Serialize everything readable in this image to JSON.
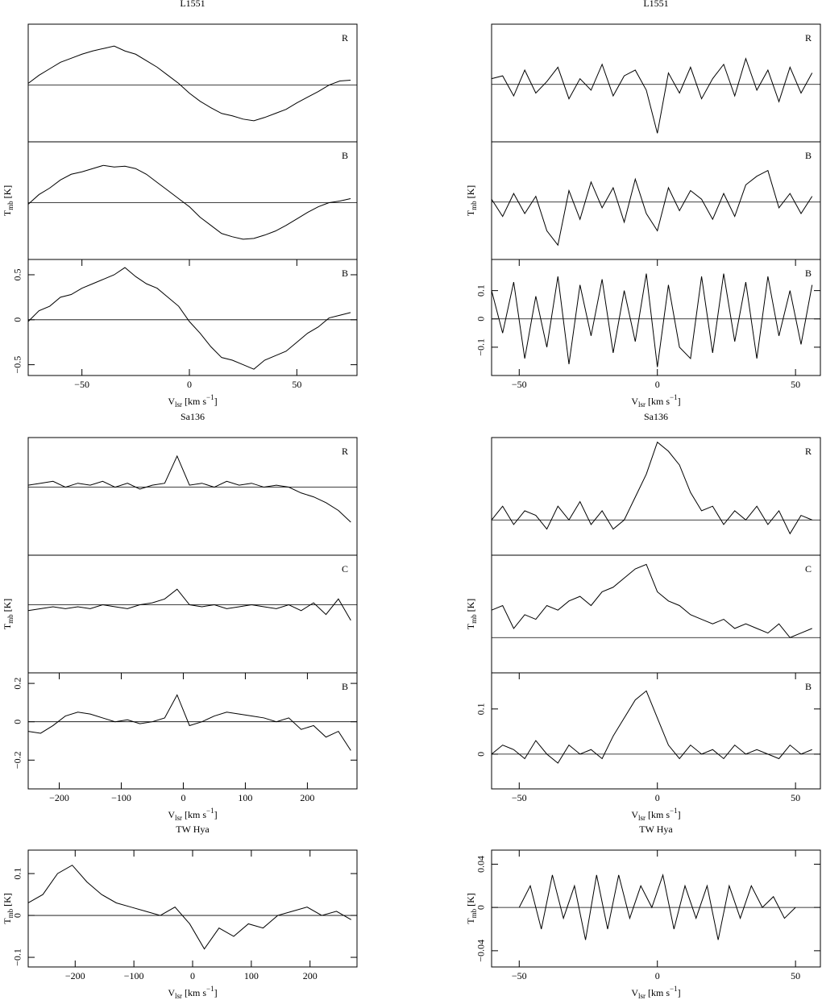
{
  "chart_data": [
    {
      "type": "line",
      "title": "L1551",
      "label": "R",
      "xlim": [
        -75,
        78
      ],
      "ylim": [
        -0.7,
        0.75
      ],
      "x": [
        -75,
        -70,
        -65,
        -60,
        -55,
        -50,
        -45,
        -40,
        -35,
        -30,
        -25,
        -20,
        -15,
        -10,
        -5,
        0,
        5,
        10,
        15,
        20,
        25,
        30,
        35,
        40,
        45,
        50,
        55,
        60,
        65,
        70,
        75
      ],
      "values": [
        0.02,
        0.12,
        0.2,
        0.28,
        0.33,
        0.38,
        0.42,
        0.45,
        0.48,
        0.42,
        0.38,
        0.3,
        0.22,
        0.12,
        0.02,
        -0.1,
        -0.2,
        -0.28,
        -0.35,
        -0.38,
        -0.42,
        -0.44,
        -0.4,
        -0.35,
        -0.3,
        -0.22,
        -0.15,
        -0.08,
        0.0,
        0.05,
        0.06
      ]
    },
    {
      "type": "line",
      "label": "B",
      "ylabel": [
        "T",
        "mb",
        " [K]"
      ],
      "xlim": [
        -75,
        78
      ],
      "ylim": [
        -0.7,
        0.75
      ],
      "x": [
        -75,
        -70,
        -65,
        -60,
        -55,
        -50,
        -45,
        -40,
        -35,
        -30,
        -25,
        -20,
        -15,
        -10,
        -5,
        0,
        5,
        10,
        15,
        20,
        25,
        30,
        35,
        40,
        45,
        50,
        55,
        60,
        65,
        70,
        75
      ],
      "values": [
        -0.02,
        0.1,
        0.18,
        0.28,
        0.35,
        0.38,
        0.42,
        0.46,
        0.44,
        0.45,
        0.42,
        0.35,
        0.25,
        0.15,
        0.05,
        -0.05,
        -0.18,
        -0.28,
        -0.38,
        -0.42,
        -0.45,
        -0.44,
        -0.4,
        -0.35,
        -0.28,
        -0.2,
        -0.12,
        -0.05,
        0.0,
        0.02,
        0.05
      ]
    },
    {
      "type": "line",
      "label": "B",
      "xlabel": [
        "V",
        "lsr",
        " [km s",
        "−1",
        "]"
      ],
      "xlim": [
        -75,
        78
      ],
      "ylim": [
        -0.62,
        0.67
      ],
      "xticks": [
        {
          "value": -50,
          "label": "−50"
        },
        0,
        50
      ],
      "yticks": [
        {
          "value": -0.5,
          "label": "−0.5"
        },
        0,
        0.5
      ],
      "x": [
        -75,
        -70,
        -65,
        -60,
        -55,
        -50,
        -45,
        -40,
        -35,
        -30,
        -25,
        -20,
        -15,
        -10,
        -5,
        0,
        5,
        10,
        15,
        20,
        25,
        30,
        35,
        40,
        45,
        50,
        55,
        60,
        65,
        70,
        75
      ],
      "values": [
        -0.02,
        0.1,
        0.15,
        0.25,
        0.28,
        0.35,
        0.4,
        0.45,
        0.5,
        0.58,
        0.48,
        0.4,
        0.35,
        0.25,
        0.15,
        -0.02,
        -0.15,
        -0.3,
        -0.42,
        -0.45,
        -0.5,
        -0.55,
        -0.45,
        -0.4,
        -0.35,
        -0.25,
        -0.15,
        -0.08,
        0.02,
        0.05,
        0.08
      ]
    },
    {
      "type": "line",
      "title": "L1551",
      "label": "R",
      "xlim": [
        -60,
        59
      ],
      "ylim": [
        -0.2,
        0.21
      ],
      "x": [
        -60,
        -56,
        -52,
        -48,
        -44,
        -40,
        -36,
        -32,
        -28,
        -24,
        -20,
        -16,
        -12,
        -8,
        -4,
        0,
        4,
        8,
        12,
        16,
        20,
        24,
        28,
        32,
        36,
        40,
        44,
        48,
        52,
        56
      ],
      "values": [
        0.02,
        0.03,
        -0.04,
        0.05,
        -0.03,
        0.01,
        0.06,
        -0.05,
        0.02,
        -0.02,
        0.07,
        -0.04,
        0.03,
        0.05,
        -0.02,
        -0.17,
        0.04,
        -0.03,
        0.06,
        -0.05,
        0.02,
        0.07,
        -0.04,
        0.09,
        -0.02,
        0.05,
        -0.06,
        0.06,
        -0.03,
        0.04
      ]
    },
    {
      "type": "line",
      "label": "B",
      "ylabel": [
        "T",
        "mb",
        " [K]"
      ],
      "xlim": [
        -60,
        59
      ],
      "ylim": [
        -0.2,
        0.21
      ],
      "x": [
        -60,
        -56,
        -52,
        -48,
        -44,
        -40,
        -36,
        -32,
        -28,
        -24,
        -20,
        -16,
        -12,
        -8,
        -4,
        0,
        4,
        8,
        12,
        16,
        20,
        24,
        28,
        32,
        36,
        40,
        44,
        48,
        52,
        56
      ],
      "values": [
        0.01,
        -0.05,
        0.03,
        -0.04,
        0.02,
        -0.1,
        -0.15,
        0.04,
        -0.06,
        0.07,
        -0.02,
        0.05,
        -0.07,
        0.08,
        -0.04,
        -0.1,
        0.05,
        -0.03,
        0.04,
        0.01,
        -0.06,
        0.03,
        -0.05,
        0.06,
        0.09,
        0.11,
        -0.02,
        0.03,
        -0.04,
        0.02
      ]
    },
    {
      "type": "line",
      "label": "B",
      "xlabel": [
        "V",
        "lsr",
        " [km s",
        "−1",
        "]"
      ],
      "xlim": [
        -60,
        59
      ],
      "ylim": [
        -0.2,
        0.21
      ],
      "xticks": [
        {
          "value": -50,
          "label": "−50"
        },
        0,
        50
      ],
      "yticks": [
        {
          "value": -0.1,
          "label": "−0.1"
        },
        0,
        0.1
      ],
      "x": [
        -60,
        -56,
        -52,
        -48,
        -44,
        -40,
        -36,
        -32,
        -28,
        -24,
        -20,
        -16,
        -12,
        -8,
        -4,
        0,
        4,
        8,
        12,
        16,
        20,
        24,
        28,
        32,
        36,
        40,
        44,
        48,
        52,
        56
      ],
      "values": [
        0.1,
        -0.05,
        0.13,
        -0.14,
        0.08,
        -0.1,
        0.15,
        -0.16,
        0.12,
        -0.06,
        0.14,
        -0.12,
        0.1,
        -0.08,
        0.16,
        -0.17,
        0.12,
        -0.1,
        -0.14,
        0.15,
        -0.12,
        0.16,
        -0.08,
        0.13,
        -0.14,
        0.15,
        -0.06,
        0.1,
        -0.09,
        0.12
      ]
    },
    {
      "type": "line",
      "title": "Sa136",
      "label": "R",
      "xlim": [
        -250,
        280
      ],
      "ylim": [
        -0.35,
        0.255
      ],
      "x": [
        -250,
        -230,
        -210,
        -190,
        -170,
        -150,
        -130,
        -110,
        -90,
        -70,
        -50,
        -30,
        -10,
        10,
        30,
        50,
        70,
        90,
        110,
        130,
        150,
        170,
        190,
        210,
        230,
        250,
        270
      ],
      "values": [
        0.01,
        0.02,
        0.03,
        0.0,
        0.02,
        0.01,
        0.03,
        0.0,
        0.02,
        -0.01,
        0.01,
        0.02,
        0.16,
        0.01,
        0.02,
        0.0,
        0.03,
        0.01,
        0.02,
        0.0,
        0.01,
        0.0,
        -0.03,
        -0.05,
        -0.08,
        -0.12,
        -0.18
      ]
    },
    {
      "type": "line",
      "label": "C",
      "ylabel": [
        "T",
        "mb",
        " [K]"
      ],
      "xlim": [
        -250,
        280
      ],
      "ylim": [
        -0.35,
        0.255
      ],
      "x": [
        -250,
        -230,
        -210,
        -190,
        -170,
        -150,
        -130,
        -110,
        -90,
        -70,
        -50,
        -30,
        -10,
        10,
        30,
        50,
        70,
        90,
        110,
        130,
        150,
        170,
        190,
        210,
        230,
        250,
        270
      ],
      "values": [
        -0.03,
        -0.02,
        -0.01,
        -0.02,
        -0.01,
        -0.02,
        0.0,
        -0.01,
        -0.02,
        0.0,
        0.01,
        0.03,
        0.08,
        0.0,
        -0.01,
        0.0,
        -0.02,
        -0.01,
        0.0,
        -0.01,
        -0.02,
        0.0,
        -0.03,
        0.01,
        -0.05,
        0.03,
        -0.08
      ]
    },
    {
      "type": "line",
      "label": "B",
      "xlabel": [
        "V",
        "lsr",
        " [km s",
        "−1",
        "]"
      ],
      "xlim": [
        -250,
        280
      ],
      "ylim": [
        -0.35,
        0.255
      ],
      "xticks": [
        {
          "value": -200,
          "label": "−200"
        },
        {
          "value": -100,
          "label": "−100"
        },
        0,
        100,
        200
      ],
      "yticks": [
        {
          "value": -0.2,
          "label": "−0.2"
        },
        0,
        0.2
      ],
      "x": [
        -250,
        -230,
        -210,
        -190,
        -170,
        -150,
        -130,
        -110,
        -90,
        -70,
        -50,
        -30,
        -10,
        10,
        30,
        50,
        70,
        90,
        110,
        130,
        150,
        170,
        190,
        210,
        230,
        250,
        270
      ],
      "values": [
        -0.05,
        -0.06,
        -0.02,
        0.03,
        0.05,
        0.04,
        0.02,
        0.0,
        0.01,
        -0.01,
        0.0,
        0.02,
        0.14,
        -0.02,
        0.0,
        0.03,
        0.05,
        0.04,
        0.03,
        0.02,
        0.0,
        0.02,
        -0.04,
        -0.02,
        -0.08,
        -0.05,
        -0.15
      ]
    },
    {
      "type": "line",
      "title": "Sa136",
      "label": "R",
      "xlim": [
        -60,
        59
      ],
      "ylim": [
        -0.077,
        0.18
      ],
      "x": [
        -60,
        -56,
        -52,
        -48,
        -44,
        -40,
        -36,
        -32,
        -28,
        -24,
        -20,
        -16,
        -12,
        -8,
        -4,
        0,
        4,
        8,
        12,
        16,
        20,
        24,
        28,
        32,
        36,
        40,
        44,
        48,
        52,
        56
      ],
      "values": [
        0.0,
        0.03,
        -0.01,
        0.02,
        0.01,
        -0.02,
        0.03,
        0.0,
        0.04,
        -0.01,
        0.02,
        -0.02,
        0.0,
        0.05,
        0.1,
        0.17,
        0.15,
        0.12,
        0.06,
        0.02,
        0.03,
        -0.01,
        0.02,
        0.0,
        0.03,
        -0.01,
        0.02,
        -0.03,
        0.01,
        0.0
      ]
    },
    {
      "type": "line",
      "label": "C",
      "ylabel": [
        "T",
        "mb",
        " [K]"
      ],
      "xlim": [
        -60,
        59
      ],
      "ylim": [
        -0.077,
        0.18
      ],
      "x": [
        -60,
        -56,
        -52,
        -48,
        -44,
        -40,
        -36,
        -32,
        -28,
        -24,
        -20,
        -16,
        -12,
        -8,
        -4,
        0,
        4,
        8,
        12,
        16,
        20,
        24,
        28,
        32,
        36,
        40,
        44,
        48,
        52,
        56
      ],
      "values": [
        0.06,
        0.07,
        0.02,
        0.05,
        0.04,
        0.07,
        0.06,
        0.08,
        0.09,
        0.07,
        0.1,
        0.11,
        0.13,
        0.15,
        0.16,
        0.1,
        0.08,
        0.07,
        0.05,
        0.04,
        0.03,
        0.04,
        0.02,
        0.03,
        0.02,
        0.01,
        0.03,
        0.0,
        0.01,
        0.02
      ]
    },
    {
      "type": "line",
      "label": "B",
      "xlabel": [
        "V",
        "lsr",
        " [km s",
        "−1",
        "]"
      ],
      "xlim": [
        -60,
        59
      ],
      "ylim": [
        -0.077,
        0.18
      ],
      "xticks": [
        {
          "value": -50,
          "label": "−50"
        },
        0,
        50
      ],
      "yticks": [
        0,
        0.1
      ],
      "x": [
        -60,
        -56,
        -52,
        -48,
        -44,
        -40,
        -36,
        -32,
        -28,
        -24,
        -20,
        -16,
        -12,
        -8,
        -4,
        0,
        4,
        8,
        12,
        16,
        20,
        24,
        28,
        32,
        36,
        40,
        44,
        48,
        52,
        56
      ],
      "values": [
        0.0,
        0.02,
        0.01,
        -0.01,
        0.03,
        0.0,
        -0.02,
        0.02,
        0.0,
        0.01,
        -0.01,
        0.04,
        0.08,
        0.12,
        0.14,
        0.08,
        0.02,
        -0.01,
        0.02,
        0.0,
        0.01,
        -0.01,
        0.02,
        0.0,
        0.01,
        0.0,
        -0.01,
        0.02,
        0.0,
        0.01
      ]
    },
    {
      "type": "line",
      "title": "TW Hya",
      "ylabel": [
        "T",
        "mb",
        " [K]"
      ],
      "xlabel": [
        "V",
        "lsr",
        " [km s",
        "−1",
        "]"
      ],
      "xlim": [
        -280,
        280
      ],
      "ylim": [
        -0.123,
        0.156
      ],
      "xticks": [
        {
          "value": -200,
          "label": "−200"
        },
        {
          "value": -100,
          "label": "−100"
        },
        0,
        100,
        200
      ],
      "yticks": [
        {
          "value": -0.1,
          "label": "−0.1"
        },
        0,
        0.1
      ],
      "x": [
        -280,
        -255,
        -230,
        -205,
        -180,
        -155,
        -130,
        -105,
        -80,
        -55,
        -30,
        -5,
        20,
        45,
        70,
        95,
        120,
        145,
        170,
        195,
        220,
        245,
        270
      ],
      "values": [
        0.03,
        0.05,
        0.1,
        0.12,
        0.08,
        0.05,
        0.03,
        0.02,
        0.01,
        0.0,
        0.02,
        -0.02,
        -0.08,
        -0.03,
        -0.05,
        -0.02,
        -0.03,
        0.0,
        0.01,
        0.02,
        0.0,
        0.01,
        -0.01
      ]
    },
    {
      "type": "line",
      "title": "TW Hya",
      "ylabel": [
        "T",
        "mb",
        " [K]"
      ],
      "xlabel": [
        "V",
        "lsr",
        " [km s",
        "−1",
        "]"
      ],
      "xlim": [
        -60,
        59
      ],
      "ylim": [
        -0.055,
        0.053
      ],
      "xticks": [
        {
          "value": -50,
          "label": "−50"
        },
        0,
        50
      ],
      "yticks": [
        {
          "value": -0.04,
          "label": "−0.04"
        },
        0,
        0.04
      ],
      "x": [
        -50,
        -46,
        -42,
        -38,
        -34,
        -30,
        -26,
        -22,
        -18,
        -14,
        -10,
        -6,
        -2,
        2,
        6,
        10,
        14,
        18,
        22,
        26,
        30,
        34,
        38,
        42,
        46,
        50
      ],
      "values": [
        0.0,
        0.02,
        -0.02,
        0.03,
        -0.01,
        0.02,
        -0.03,
        0.03,
        -0.02,
        0.03,
        -0.01,
        0.02,
        0.0,
        0.03,
        -0.02,
        0.02,
        -0.01,
        0.02,
        -0.03,
        0.02,
        -0.01,
        0.02,
        0.0,
        0.01,
        -0.01,
        0.0
      ]
    }
  ]
}
